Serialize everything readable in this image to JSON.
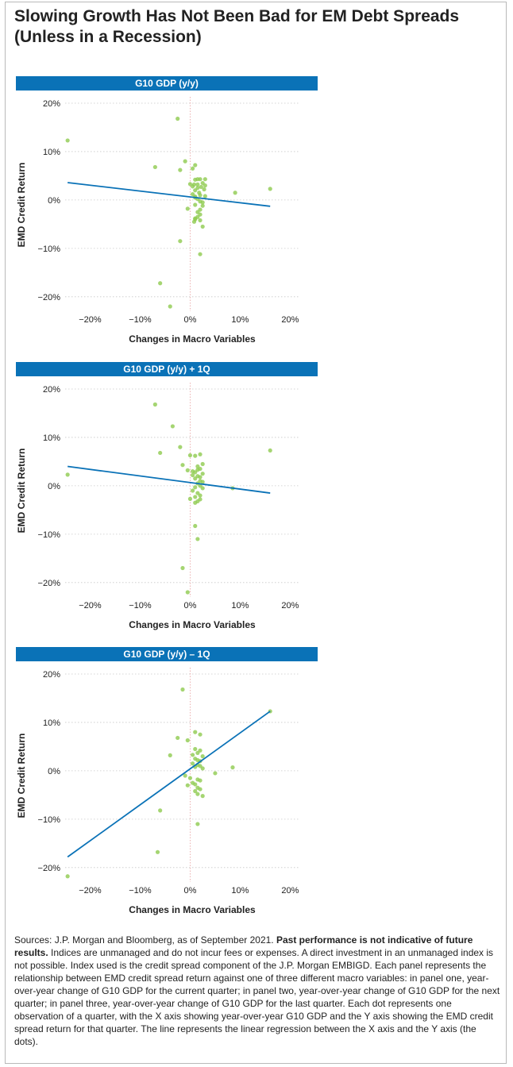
{
  "title": {
    "line1": "Slowing Growth Has Not Been Bad for EM Debt Spreads",
    "line2": "(Unless in a Recession)"
  },
  "footnote": {
    "sources": "Sources: J.P. Morgan and Bloomberg, as of September 2021. ",
    "bold": "Past performance is not indicative of future results.",
    "rest": " Indices are unmanaged and do not incur fees or expenses. A direct investment in an unmanaged index is not possible. Index used is the credit spread component of the J.P. Morgan EMBIGD. Each panel represents the relationship between EMD credit spread return against one of three different macro variables: in panel one, year-over-year change of G10 GDP for the current quarter; in panel two, year-over-year change of G10 GDP for the next quarter; in panel three, year-over-year change of G10 GDP for the last quarter. Each dot represents one observation of a quarter, with the X axis showing year-over-year G10 GDP and the Y axis showing the EMD credit spread return for that quarter. The line represents the linear regression between the X axis and the Y axis (the dots)."
  },
  "colors": {
    "header": "#0a72b7",
    "dots": "#8fca4f",
    "line": "#0a72b7",
    "grid": "#c8c8c8",
    "zero": "#e8a0a0"
  },
  "chart_data": [
    {
      "type": "scatter",
      "title": "G10 GDP (y/y)",
      "xlabel": "Changes in Macro Variables",
      "ylabel": "EMD Credit Return",
      "xlim": [
        -25,
        22
      ],
      "ylim": [
        -22,
        20
      ],
      "xticks": [
        "-20%",
        "-10%",
        "0%",
        "10%",
        "20%"
      ],
      "yticks": [
        "20%",
        "10%",
        "0%",
        "-10%",
        "-20%"
      ],
      "x": [
        -24.5,
        -2.5,
        -7,
        -1,
        1,
        -2,
        0.5,
        2,
        3,
        0,
        1,
        1.5,
        1.5,
        0.8,
        0.5,
        3,
        2.5,
        1.5,
        2.2,
        1,
        1.8,
        2.8,
        0.5,
        1,
        2,
        3,
        1.5,
        1,
        2,
        2.5,
        1,
        2.5,
        -0.5,
        2,
        1.5,
        2,
        1.5,
        1,
        1,
        2,
        0.8,
        2.5,
        9,
        16,
        -2,
        2,
        -6,
        -4
      ],
      "y": [
        12.3,
        16.8,
        6.8,
        8,
        7.2,
        6.2,
        6.5,
        4.3,
        4.3,
        3.3,
        4.2,
        4.3,
        3.2,
        3.2,
        2.8,
        3,
        3.5,
        2.5,
        2.7,
        2,
        1.5,
        2.2,
        1.2,
        0.7,
        1,
        0.8,
        0.2,
        0.5,
        -0.3,
        -0.5,
        -1,
        -1.2,
        -1.8,
        -2,
        -2.5,
        -3,
        -3.5,
        -3.8,
        -4,
        -4.2,
        -4.5,
        -5.5,
        1.5,
        2.3,
        -8.5,
        -11.2,
        -17.2,
        -22
      ],
      "regression": {
        "x": [
          -24.5,
          16
        ],
        "y": [
          3.6,
          -1.3
        ]
      }
    },
    {
      "type": "scatter",
      "title": "G10 GDP (y/y) + 1Q",
      "xlabel": "Changes in Macro Variables",
      "ylabel": "EMD Credit Return",
      "xlim": [
        -25,
        22
      ],
      "ylim": [
        -22,
        20
      ],
      "xticks": [
        "-20%",
        "-10%",
        "0%",
        "10%",
        "20%"
      ],
      "yticks": [
        "20%",
        "10%",
        "0%",
        "-10%",
        "-20%"
      ],
      "x": [
        -24.5,
        -7,
        -3.5,
        -2,
        -6,
        -1.5,
        0,
        1,
        2,
        2.5,
        1.5,
        -0.5,
        0.5,
        1.5,
        2,
        1,
        2.5,
        0.5,
        1.5,
        2,
        1,
        2,
        2.5,
        1.5,
        2,
        1,
        2.5,
        0.5,
        1.5,
        2,
        1,
        2,
        1.5,
        1,
        0,
        8.5,
        16,
        1,
        1.5,
        -1.5,
        -0.5
      ],
      "y": [
        2.3,
        16.8,
        12.3,
        8,
        6.8,
        4.3,
        6.3,
        6.2,
        6.5,
        4.5,
        4,
        3.2,
        3,
        3.3,
        3.5,
        2.8,
        2.5,
        2.2,
        2,
        1.8,
        1.5,
        1,
        0.8,
        0.5,
        0,
        -0.3,
        -0.5,
        -1,
        -1.5,
        -2,
        -2.3,
        -2.8,
        -3.2,
        -3.5,
        -2.7,
        -0.5,
        7.3,
        -8.3,
        -11,
        -17,
        -22
      ],
      "regression": {
        "x": [
          -24.5,
          16
        ],
        "y": [
          4.0,
          -1.5
        ]
      }
    },
    {
      "type": "scatter",
      "title": "G10 GDP (y/y) – 1Q",
      "xlabel": "Changes in Macro Variables",
      "ylabel": "EMD Credit Return",
      "xlim": [
        -25,
        22
      ],
      "ylim": [
        -22,
        20
      ],
      "xticks": [
        "-20%",
        "-10%",
        "0%",
        "10%",
        "20%"
      ],
      "yticks": [
        "20%",
        "10%",
        "0%",
        "-10%",
        "-20%"
      ],
      "x": [
        -24.5,
        -1.5,
        -2.5,
        1,
        2,
        -4,
        -0.5,
        1,
        2,
        1.5,
        0.5,
        2.5,
        1,
        1.5,
        2,
        0.5,
        1.5,
        2,
        1,
        2.5,
        -1,
        0,
        1.5,
        2,
        0.5,
        1,
        -0.5,
        1.5,
        2,
        1,
        2.5,
        1.5,
        5,
        8.5,
        16,
        -6,
        -6.5,
        1.5
      ],
      "y": [
        -21.8,
        16.8,
        6.8,
        8,
        7.5,
        3.2,
        6.3,
        4.5,
        4.2,
        3.7,
        3.3,
        3,
        2.5,
        2.2,
        2,
        1.5,
        1.2,
        1,
        0.8,
        0.5,
        -1,
        -1.5,
        -1.8,
        -2,
        -2.5,
        -2.8,
        -3,
        -3.5,
        -3.8,
        -4.2,
        -5.2,
        -4.8,
        -0.5,
        0.7,
        12.3,
        -8.2,
        -16.8,
        -11
      ],
      "regression": {
        "x": [
          -24.5,
          16
        ],
        "y": [
          -17.8,
          12.3
        ]
      }
    }
  ]
}
